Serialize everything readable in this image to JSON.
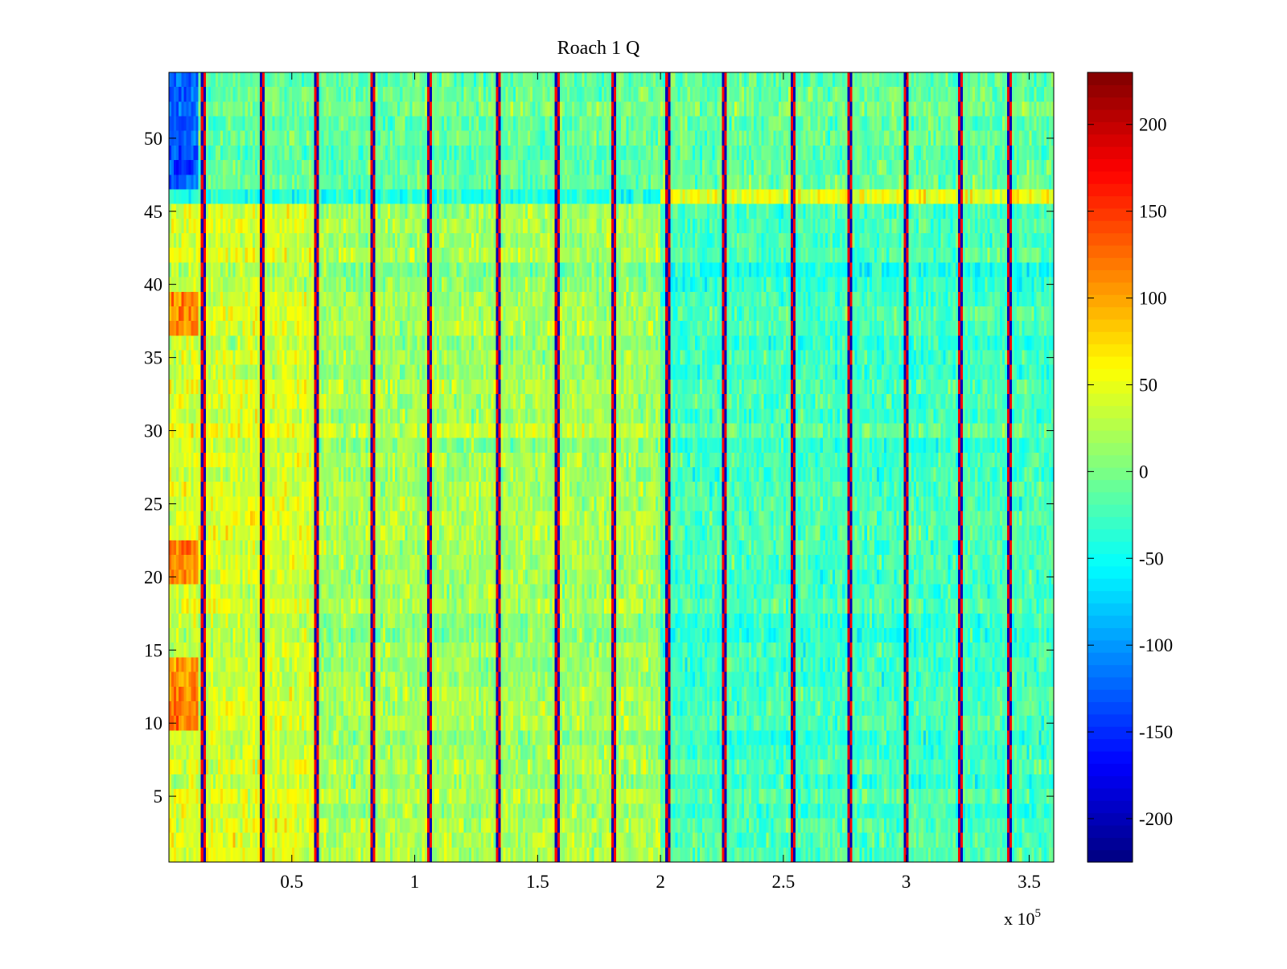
{
  "chart_data": {
    "type": "heatmap",
    "title": "Roach 1 Q",
    "xlabel": "",
    "ylabel": "",
    "x_multiplier_label": "x 10",
    "x_multiplier_exponent": "5",
    "xlim": [
      0,
      360000
    ],
    "ylim": [
      0.5,
      54.5
    ],
    "x_ticks": [
      0.5,
      1,
      1.5,
      2,
      2.5,
      3,
      3.5
    ],
    "x_tick_labels": [
      "0.5",
      "1",
      "1.5",
      "2",
      "2.5",
      "3",
      "3.5"
    ],
    "y_ticks": [
      5,
      10,
      15,
      20,
      25,
      30,
      35,
      40,
      45,
      50
    ],
    "y_tick_labels": [
      "5",
      "10",
      "15",
      "20",
      "25",
      "30",
      "35",
      "40",
      "45",
      "50"
    ],
    "colorbar": {
      "colormap": "jet",
      "range": [
        -225,
        230
      ],
      "ticks": [
        -200,
        -150,
        -100,
        -50,
        0,
        50,
        100,
        150,
        200
      ],
      "tick_labels": [
        "-200",
        "-150",
        "-100",
        "-50",
        "0",
        "50",
        "100",
        "150",
        "200"
      ]
    },
    "rows": 54,
    "columns": 360,
    "grid": false,
    "approx_structure": {
      "x_bounds": [
        0,
        50000,
        100000,
        200000,
        250000,
        360000
      ],
      "region_mean_values": [
        {
          "rows": [
            1,
            45
          ],
          "x_range": [
            0,
            60000
          ],
          "mean": 40
        },
        {
          "rows": [
            1,
            45
          ],
          "x_range": [
            60000,
            200000
          ],
          "mean": 18
        },
        {
          "rows": [
            1,
            45
          ],
          "x_range": [
            200000,
            360000
          ],
          "mean": -25
        },
        {
          "rows": [
            46,
            46
          ],
          "x_range": [
            0,
            200000
          ],
          "mean": -40
        },
        {
          "rows": [
            46,
            46
          ],
          "x_range": [
            200000,
            360000
          ],
          "mean": 50
        },
        {
          "rows": [
            47,
            54
          ],
          "x_range": [
            0,
            360000
          ],
          "mean": -10
        }
      ],
      "vertical_stripe_x": [
        14000,
        38000,
        60000,
        83000,
        106000,
        134000,
        158000,
        181000,
        203000,
        226000,
        254000,
        277000,
        300000,
        322000,
        342000
      ]
    }
  }
}
